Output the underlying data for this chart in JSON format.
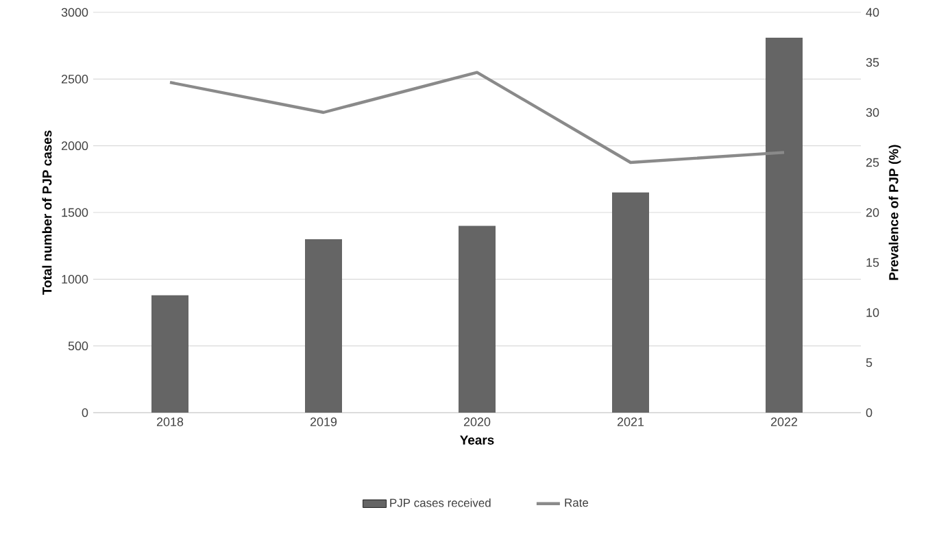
{
  "chart_data": {
    "type": "bar",
    "xlabel": "Years",
    "ylabel": "Total number of PJP cases",
    "y2label": "Prevalence of PJP (%)",
    "categories": [
      "2018",
      "2019",
      "2020",
      "2021",
      "2022"
    ],
    "series": [
      {
        "name": "PJP cases received",
        "color": "#656565",
        "values": [
          880,
          1300,
          1400,
          1650,
          2810
        ]
      },
      {
        "name": "Rate",
        "type": "line",
        "axis": "y2",
        "color": "#8a8a8a",
        "values": [
          33,
          30,
          34,
          25,
          26
        ]
      }
    ],
    "ylim": [
      0,
      3000
    ],
    "yticks": [
      0,
      500,
      1000,
      1500,
      2000,
      2500,
      3000
    ],
    "y2lim": [
      0,
      40
    ],
    "y2ticks": [
      0,
      5,
      10,
      15,
      20,
      25,
      30,
      35,
      40
    ],
    "grid": "y",
    "legend": "bottom"
  }
}
